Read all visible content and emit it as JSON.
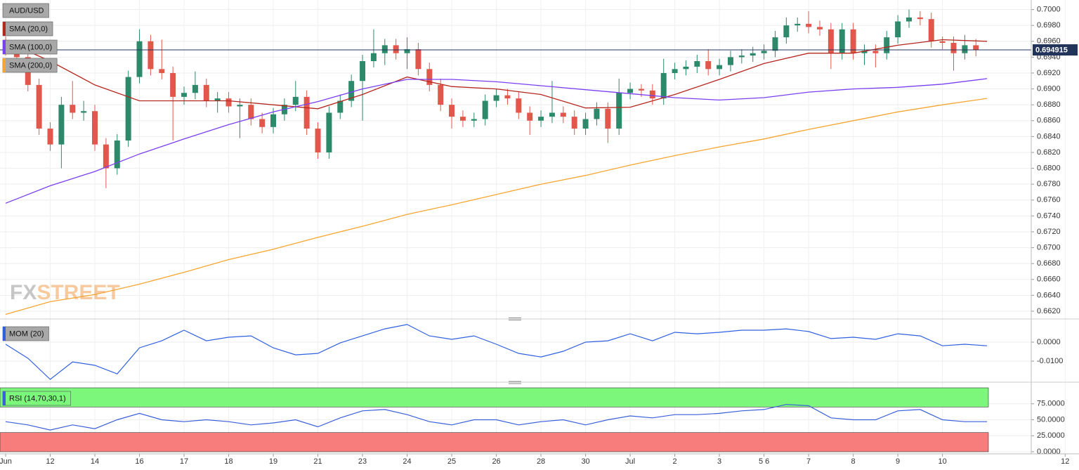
{
  "chart_data": [
    {
      "type": "candlestick",
      "title": "AUD/USD",
      "watermark": [
        "FX",
        "STREET"
      ],
      "up_color": "#2c8a6a",
      "down_color": "#e2574c",
      "grid": true,
      "xlim": [
        -0.126,
        22.99
      ],
      "ylim": [
        0.6612,
        0.7012
      ],
      "yticks": [
        {
          "value": 0.662,
          "label": "0.6620"
        },
        {
          "value": 0.664,
          "label": "0.6640"
        },
        {
          "value": 0.666,
          "label": "0.6660"
        },
        {
          "value": 0.668,
          "label": "0.6680"
        },
        {
          "value": 0.67,
          "label": "0.6700"
        },
        {
          "value": 0.672,
          "label": "0.6720"
        },
        {
          "value": 0.674,
          "label": "0.6740"
        },
        {
          "value": 0.676,
          "label": "0.6760"
        },
        {
          "value": 0.678,
          "label": "0.6780"
        },
        {
          "value": 0.68,
          "label": "0.6800"
        },
        {
          "value": 0.682,
          "label": "0.6820"
        },
        {
          "value": 0.684,
          "label": "0.6840"
        },
        {
          "value": 0.686,
          "label": "0.6860"
        },
        {
          "value": 0.688,
          "label": "0.6880"
        },
        {
          "value": 0.69,
          "label": "0.6900"
        },
        {
          "value": 0.692,
          "label": "0.6920"
        },
        {
          "value": 0.694,
          "label": "0.6940"
        },
        {
          "value": 0.696,
          "label": "0.6960"
        },
        {
          "value": 0.698,
          "label": "0.6980"
        },
        {
          "value": 0.7,
          "label": "0.7000"
        }
      ],
      "last_price": 0.694915,
      "last_price_color": "#22345a",
      "x": [
        0,
        0.25,
        0.5,
        0.75,
        1,
        1.25,
        1.5,
        1.75,
        2,
        2.25,
        2.5,
        2.75,
        3,
        3.25,
        3.5,
        3.75,
        4,
        4.25,
        4.5,
        4.75,
        5,
        5.25,
        5.5,
        5.75,
        6,
        6.25,
        6.5,
        6.75,
        7,
        7.25,
        7.5,
        7.75,
        8,
        8.25,
        8.5,
        8.75,
        9,
        9.25,
        9.5,
        9.75,
        10,
        10.25,
        10.5,
        10.75,
        11,
        11.25,
        11.5,
        11.75,
        12,
        12.25,
        12.5,
        12.75,
        13,
        13.25,
        13.5,
        13.75,
        14,
        14.25,
        14.5,
        14.75,
        15,
        15.25,
        15.5,
        15.75,
        16,
        16.25,
        16.5,
        16.75,
        17,
        17.25,
        17.5,
        17.75,
        18,
        18.25,
        18.5,
        18.75,
        19,
        19.25,
        19.5,
        19.75,
        20,
        20.25,
        20.5,
        20.75,
        21,
        21.25,
        21.5,
        21.75
      ],
      "open": [
        0.6958,
        0.695,
        0.694,
        0.6905,
        0.685,
        0.683,
        0.688,
        0.687,
        0.6872,
        0.683,
        0.68,
        0.6835,
        0.6915,
        0.696,
        0.6925,
        0.692,
        0.689,
        0.6895,
        0.6905,
        0.6885,
        0.6888,
        0.6878,
        0.688,
        0.6862,
        0.6852,
        0.6868,
        0.688,
        0.689,
        0.685,
        0.682,
        0.687,
        0.6885,
        0.691,
        0.6935,
        0.6945,
        0.6955,
        0.6945,
        0.695,
        0.6925,
        0.6905,
        0.688,
        0.6865,
        0.686,
        0.6862,
        0.6885,
        0.6892,
        0.6888,
        0.687,
        0.686,
        0.6865,
        0.687,
        0.6865,
        0.685,
        0.6862,
        0.6875,
        0.685,
        0.6895,
        0.69,
        0.6898,
        0.6888,
        0.692,
        0.6925,
        0.6928,
        0.6935,
        0.6925,
        0.693,
        0.694,
        0.6942,
        0.6945,
        0.6948,
        0.6965,
        0.698,
        0.6982,
        0.6978,
        0.6975,
        0.6945,
        0.6975,
        0.6945,
        0.6948,
        0.6945,
        0.6965,
        0.6985,
        0.699,
        0.6988,
        0.696,
        0.6958,
        0.6945,
        0.6955
      ],
      "high": [
        0.6966,
        0.6958,
        0.6948,
        0.6913,
        0.6858,
        0.689,
        0.691,
        0.6885,
        0.688,
        0.6838,
        0.6843,
        0.6923,
        0.6975,
        0.6968,
        0.6962,
        0.6928,
        0.6903,
        0.6922,
        0.6913,
        0.6896,
        0.6896,
        0.6888,
        0.6888,
        0.687,
        0.6876,
        0.6888,
        0.691,
        0.6898,
        0.6858,
        0.6878,
        0.6893,
        0.6918,
        0.6943,
        0.6975,
        0.6963,
        0.6963,
        0.6965,
        0.6958,
        0.6933,
        0.6913,
        0.6888,
        0.6873,
        0.687,
        0.6893,
        0.69,
        0.69,
        0.6896,
        0.6878,
        0.6873,
        0.691,
        0.6878,
        0.6873,
        0.687,
        0.6883,
        0.6883,
        0.6913,
        0.6908,
        0.6906,
        0.6906,
        0.6938,
        0.6933,
        0.6936,
        0.6943,
        0.695,
        0.6938,
        0.6948,
        0.695,
        0.6953,
        0.6956,
        0.6973,
        0.699,
        0.699,
        0.6998,
        0.6986,
        0.6983,
        0.6983,
        0.6983,
        0.6956,
        0.6956,
        0.6973,
        0.6993,
        0.7,
        0.6998,
        0.6996,
        0.6966,
        0.6966,
        0.6968,
        0.6963
      ],
      "low": [
        0.6942,
        0.6932,
        0.6897,
        0.6842,
        0.6822,
        0.68,
        0.6862,
        0.686,
        0.6822,
        0.6775,
        0.6792,
        0.6827,
        0.6907,
        0.6917,
        0.6912,
        0.6835,
        0.688,
        0.6887,
        0.6877,
        0.687,
        0.687,
        0.6838,
        0.6854,
        0.6844,
        0.6844,
        0.686,
        0.6872,
        0.6842,
        0.6812,
        0.6812,
        0.6862,
        0.6877,
        0.686,
        0.6927,
        0.693,
        0.6937,
        0.6925,
        0.6917,
        0.6897,
        0.6872,
        0.685,
        0.6852,
        0.6852,
        0.6854,
        0.6877,
        0.688,
        0.6862,
        0.6842,
        0.6852,
        0.6857,
        0.6857,
        0.6842,
        0.6842,
        0.6854,
        0.6832,
        0.6842,
        0.6887,
        0.689,
        0.688,
        0.688,
        0.6912,
        0.6917,
        0.692,
        0.6917,
        0.6917,
        0.6922,
        0.6932,
        0.6934,
        0.6937,
        0.694,
        0.6957,
        0.6972,
        0.697,
        0.6967,
        0.6925,
        0.6937,
        0.6937,
        0.693,
        0.6927,
        0.6937,
        0.6957,
        0.6977,
        0.698,
        0.6952,
        0.695,
        0.6923,
        0.6937,
        0.6941
      ],
      "close": [
        0.695,
        0.694,
        0.6905,
        0.685,
        0.683,
        0.688,
        0.687,
        0.6872,
        0.683,
        0.68,
        0.6835,
        0.6915,
        0.696,
        0.6925,
        0.692,
        0.689,
        0.6895,
        0.6905,
        0.6885,
        0.6888,
        0.6878,
        0.688,
        0.6862,
        0.6852,
        0.6868,
        0.688,
        0.689,
        0.685,
        0.682,
        0.687,
        0.6885,
        0.691,
        0.6935,
        0.6945,
        0.6955,
        0.6945,
        0.695,
        0.6925,
        0.6905,
        0.688,
        0.6865,
        0.686,
        0.6862,
        0.6885,
        0.6892,
        0.6888,
        0.687,
        0.686,
        0.6865,
        0.687,
        0.6865,
        0.685,
        0.6862,
        0.6875,
        0.685,
        0.6895,
        0.69,
        0.6898,
        0.6888,
        0.692,
        0.6925,
        0.6928,
        0.6935,
        0.6925,
        0.693,
        0.694,
        0.6942,
        0.6945,
        0.6948,
        0.6965,
        0.698,
        0.6982,
        0.6978,
        0.6975,
        0.6945,
        0.6975,
        0.6945,
        0.6948,
        0.6945,
        0.6965,
        0.6985,
        0.699,
        0.6988,
        0.696,
        0.6958,
        0.6945,
        0.6955,
        0.6949
      ],
      "series": [
        {
          "name": "SMA (20,0)",
          "color": "#b5261e",
          "x": [
            0,
            1,
            2,
            3,
            4,
            5,
            6,
            7,
            8,
            9,
            10,
            11,
            12,
            13,
            14,
            15,
            16,
            17,
            18,
            19,
            20,
            21,
            22
          ],
          "values": [
            0.696,
            0.6935,
            0.6905,
            0.6885,
            0.6885,
            0.6885,
            0.688,
            0.6875,
            0.6893,
            0.6915,
            0.6903,
            0.69,
            0.6893,
            0.6876,
            0.6877,
            0.6893,
            0.6912,
            0.6932,
            0.6945,
            0.6945,
            0.6955,
            0.6962,
            0.696
          ]
        },
        {
          "name": "SMA (100,0)",
          "color": "#7a3ff0",
          "x": [
            0,
            1,
            2,
            3,
            4,
            5,
            6,
            7,
            8,
            9,
            10,
            11,
            12,
            13,
            14,
            15,
            16,
            17,
            18,
            19,
            20,
            21,
            22
          ],
          "values": [
            0.6756,
            0.6778,
            0.6796,
            0.6818,
            0.6837,
            0.6855,
            0.6871,
            0.6884,
            0.69,
            0.6912,
            0.6912,
            0.6909,
            0.6904,
            0.6899,
            0.6894,
            0.6889,
            0.6886,
            0.6889,
            0.6896,
            0.69,
            0.6902,
            0.6906,
            0.6913
          ]
        },
        {
          "name": "SMA (200,0)",
          "color": "#f7a531",
          "x": [
            0,
            1,
            2,
            3,
            4,
            5,
            6,
            7,
            8,
            9,
            10,
            11,
            12,
            13,
            14,
            15,
            16,
            17,
            18,
            19,
            20,
            21,
            22
          ],
          "values": [
            0.6616,
            0.6632,
            0.6641,
            0.6654,
            0.6669,
            0.6685,
            0.6698,
            0.6713,
            0.6727,
            0.6742,
            0.6754,
            0.6767,
            0.678,
            0.6791,
            0.6804,
            0.6816,
            0.6827,
            0.6837,
            0.6849,
            0.686,
            0.6871,
            0.688,
            0.6888
          ]
        }
      ]
    },
    {
      "type": "line",
      "title": "MOM (20)",
      "color": "#3060e0",
      "grid": true,
      "xlim": [
        -0.126,
        22.99
      ],
      "ylim": [
        -0.0196,
        0.01
      ],
      "yticks": [
        {
          "value": 0,
          "label": "0.0000"
        },
        {
          "value": -0.01,
          "label": "-0.0100"
        }
      ],
      "x": [
        0,
        0.5,
        1,
        1.5,
        2,
        2.5,
        3,
        3.5,
        4,
        4.5,
        5,
        5.5,
        6,
        6.5,
        7,
        7.5,
        8,
        8.5,
        9,
        9.5,
        10,
        10.5,
        11,
        11.5,
        12,
        12.5,
        13,
        13.5,
        14,
        14.5,
        15,
        15.5,
        16,
        16.5,
        17,
        17.5,
        18,
        18.5,
        19,
        19.5,
        20,
        20.5,
        21,
        21.5,
        22
      ],
      "values": [
        -0.0011,
        -0.0085,
        -0.0196,
        -0.0104,
        -0.0122,
        -0.0167,
        -0.003,
        0.0007,
        0.0063,
        0.0007,
        0.0026,
        0.0033,
        -0.003,
        -0.0067,
        -0.0059,
        -0.0004,
        0.0033,
        0.007,
        0.0093,
        0.0033,
        0.0015,
        0.0033,
        -0.0011,
        -0.0059,
        -0.0078,
        -0.0048,
        0,
        0.0007,
        0.0044,
        0.0007,
        0.0052,
        0.0044,
        0.0052,
        0.0063,
        0.0063,
        0.007,
        0.0056,
        0.0019,
        0.0026,
        0.0015,
        0.0044,
        0.0033,
        -0.0019,
        -0.0011,
        -0.0019
      ]
    },
    {
      "type": "line",
      "title": "RSI (14,70,30,1)",
      "color": "#3a5fd9",
      "grid": true,
      "overbought": 70,
      "oversold": 30,
      "overbought_color": "#7cf77c",
      "oversold_color": "#f77c7c",
      "xlim": [
        -0.126,
        22.99
      ],
      "ylim": [
        0,
        100
      ],
      "yticks": [
        {
          "value": 75,
          "label": "75.0000"
        },
        {
          "value": 50,
          "label": "50.0000"
        },
        {
          "value": 25,
          "label": "25.0000"
        },
        {
          "value": 0,
          "label": "0.0000"
        }
      ],
      "xticks": [
        {
          "value": 0,
          "label": "Jun"
        },
        {
          "value": 1,
          "label": "12"
        },
        {
          "value": 2,
          "label": "14"
        },
        {
          "value": 3,
          "label": "16"
        },
        {
          "value": 4,
          "label": "17"
        },
        {
          "value": 5,
          "label": "18"
        },
        {
          "value": 6,
          "label": "19"
        },
        {
          "value": 7,
          "label": "21"
        },
        {
          "value": 8,
          "label": "23"
        },
        {
          "value": 9,
          "label": "24"
        },
        {
          "value": 10,
          "label": "25"
        },
        {
          "value": 11,
          "label": "26"
        },
        {
          "value": 12,
          "label": "28"
        },
        {
          "value": 13,
          "label": "30"
        },
        {
          "value": 14,
          "label": "Jul"
        },
        {
          "value": 15,
          "label": "2"
        },
        {
          "value": 16,
          "label": "3"
        },
        {
          "value": 17,
          "label": "5 6"
        },
        {
          "value": 18,
          "label": "7"
        },
        {
          "value": 19,
          "label": "8"
        },
        {
          "value": 20,
          "label": "9"
        },
        {
          "value": 21,
          "label": "10"
        },
        {
          "value": 23.75,
          "label": "12"
        }
      ],
      "x": [
        0,
        0.5,
        1,
        1.5,
        2,
        2.5,
        3,
        3.5,
        4,
        4.5,
        5,
        5.5,
        6,
        6.5,
        7,
        7.5,
        8,
        8.5,
        9,
        9.5,
        10,
        10.5,
        11,
        11.5,
        12,
        12.5,
        13,
        13.5,
        14,
        14.5,
        15,
        15.5,
        16,
        16.5,
        17,
        17.5,
        18,
        18.5,
        19,
        19.5,
        20,
        20.5,
        21,
        21.5,
        22
      ],
      "values": [
        47,
        42,
        34,
        42,
        36,
        50,
        60,
        50,
        47,
        50,
        47,
        42,
        45,
        50,
        39,
        53,
        64,
        66,
        58,
        47,
        42,
        50,
        50,
        42,
        47,
        50,
        42,
        50,
        56,
        53,
        58,
        58,
        60,
        64,
        66,
        74,
        72,
        53,
        50,
        50,
        64,
        66,
        50,
        47,
        47
      ]
    }
  ]
}
